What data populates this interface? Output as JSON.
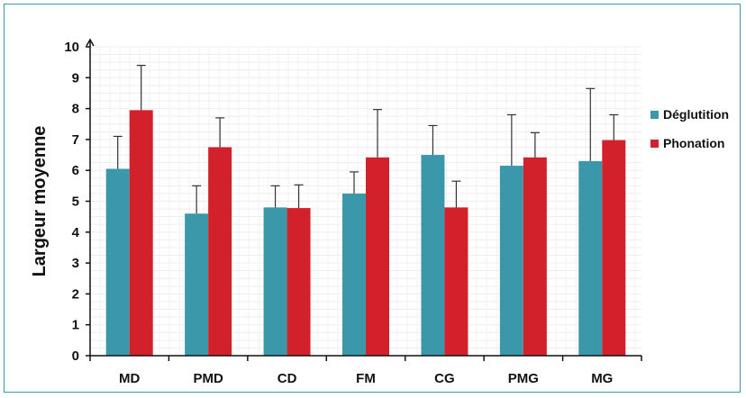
{
  "chart_data": {
    "type": "bar",
    "ylabel": "Largeur moyenne",
    "xlabel": "",
    "ylim": [
      0,
      10
    ],
    "yticks": [
      "0",
      "1",
      "2",
      "3",
      "4",
      "5",
      "6",
      "7",
      "8",
      "9",
      "10"
    ],
    "categories": [
      "MD",
      "PMD",
      "CD",
      "FM",
      "CG",
      "PMG",
      "MG"
    ],
    "series": [
      {
        "name": "Déglutition",
        "color": "#3a98aa",
        "values": [
          6.05,
          4.6,
          4.8,
          5.25,
          6.5,
          6.15,
          6.3
        ],
        "errors": [
          1.05,
          0.9,
          0.7,
          0.7,
          0.95,
          1.65,
          2.35
        ]
      },
      {
        "name": "Phonation",
        "color": "#d3212c",
        "values": [
          7.95,
          6.75,
          4.78,
          6.42,
          4.8,
          6.42,
          6.98
        ],
        "errors": [
          1.45,
          0.95,
          0.75,
          1.55,
          0.85,
          0.8,
          0.82
        ]
      }
    ],
    "grid": true,
    "legend": "right"
  }
}
